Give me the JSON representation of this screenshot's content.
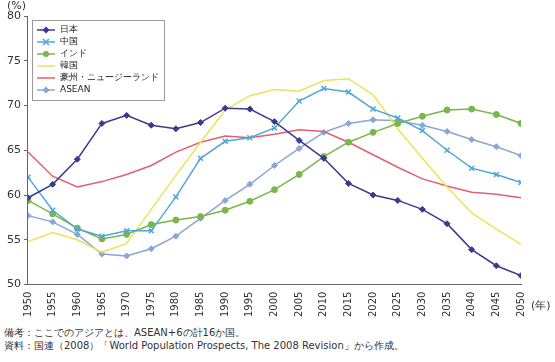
{
  "chart_data": {
    "type": "line",
    "ylabel": "(%)",
    "xlabel": "(年)",
    "annotations": [
      "備考：ここでのアジアとは、ASEAN+6の計16か国。",
      "資料：国連（2008）「World Population Prospects, The 2008 Revision」から作成。"
    ],
    "categories": [
      "1950",
      "1955",
      "1960",
      "1965",
      "1970",
      "1975",
      "1980",
      "1985",
      "1990",
      "1995",
      "2000",
      "2005",
      "2010",
      "2015",
      "2020",
      "2025",
      "2030",
      "2035",
      "2040",
      "2045",
      "2050"
    ],
    "series": [
      {
        "name": "日本",
        "color": "#3b3b8e",
        "marker": "diamond",
        "values": [
          59.7,
          61.2,
          64.0,
          68.0,
          68.9,
          67.8,
          67.4,
          68.1,
          69.7,
          69.6,
          68.2,
          66.1,
          64.1,
          61.3,
          60.0,
          59.4,
          58.4,
          56.8,
          53.9,
          52.1,
          51.0
        ]
      },
      {
        "name": "中国",
        "color": "#4fa8d8",
        "marker": "x",
        "values": [
          62.0,
          58.3,
          56.2,
          55.4,
          56.0,
          56.0,
          59.8,
          64.1,
          66.0,
          66.4,
          67.5,
          70.5,
          71.9,
          71.5,
          69.6,
          68.6,
          67.2,
          65.0,
          63.0,
          62.3,
          61.4
        ]
      },
      {
        "name": "インド",
        "color": "#7ab648",
        "marker": "circle",
        "values": [
          59.4,
          57.9,
          56.3,
          55.1,
          55.6,
          56.7,
          57.2,
          57.6,
          58.3,
          59.3,
          60.6,
          62.3,
          64.3,
          65.9,
          67.0,
          68.0,
          68.8,
          69.5,
          69.6,
          69.0,
          68.0
        ]
      },
      {
        "name": "韓国",
        "color": "#ece35a",
        "marker": "none",
        "values": [
          54.8,
          55.8,
          55.0,
          53.6,
          54.6,
          58.4,
          62.2,
          65.9,
          69.5,
          71.1,
          71.8,
          71.6,
          72.8,
          73.0,
          71.2,
          67.4,
          64.1,
          60.9,
          58.0,
          56.2,
          54.5
        ]
      },
      {
        "name": "豪州・ニュージーランド",
        "color": "#e06070",
        "marker": "none",
        "values": [
          64.8,
          62.1,
          60.9,
          61.5,
          62.3,
          63.3,
          64.8,
          65.9,
          66.6,
          66.4,
          66.8,
          67.3,
          67.1,
          65.9,
          64.5,
          63.1,
          61.8,
          61.0,
          60.3,
          60.1,
          59.7
        ]
      },
      {
        "name": "ASEAN",
        "color": "#8aa6d6",
        "marker": "diamond",
        "values": [
          57.7,
          57.0,
          55.6,
          53.4,
          53.2,
          54.0,
          55.4,
          57.4,
          59.4,
          61.2,
          63.3,
          65.2,
          67.0,
          68.0,
          68.4,
          68.3,
          67.8,
          67.1,
          66.2,
          65.4,
          64.4
        ]
      }
    ],
    "ylim": [
      50,
      80
    ],
    "yticks": [
      50,
      55,
      60,
      65,
      70,
      75,
      80
    ],
    "grid": false,
    "legend": "upper left"
  }
}
